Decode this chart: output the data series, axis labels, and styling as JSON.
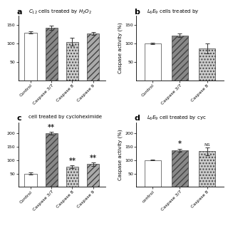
{
  "panels": [
    {
      "label": "a",
      "title": "$C_{12}$ cells treated by $H_2O_2$",
      "categories": [
        "Control",
        "Caspase 3/7",
        "Caspase 8",
        "Caspase 9"
      ],
      "values": [
        130,
        143,
        105,
        128
      ],
      "errors": [
        3,
        6,
        11,
        4
      ],
      "bar_colors": [
        "#ffffff",
        "#888888",
        "#cccccc",
        "#aaaaaa"
      ],
      "bar_hatches": [
        "",
        "////",
        "....",
        "////"
      ],
      "ylabel": "Caspase activity (%)",
      "ylim": [
        0,
        175
      ],
      "yticks": [
        50,
        100,
        150
      ],
      "show_ylabel": false,
      "annotations": [
        "",
        "",
        "",
        ""
      ],
      "row": 0,
      "col": 0
    },
    {
      "label": "b",
      "title": "$L_6E_9$ cells treated by",
      "categories": [
        "Control",
        "Caspase 3/7",
        "Caspase 8"
      ],
      "values": [
        100,
        122,
        87
      ],
      "errors": [
        2,
        5,
        13
      ],
      "bar_colors": [
        "#ffffff",
        "#888888",
        "#cccccc"
      ],
      "bar_hatches": [
        "",
        "////",
        "...."
      ],
      "ylabel": "Caspase activity (%)",
      "ylim": [
        0,
        175
      ],
      "yticks": [
        50,
        100,
        150
      ],
      "show_ylabel": true,
      "annotations": [
        "",
        "",
        ""
      ],
      "row": 0,
      "col": 1
    },
    {
      "label": "c",
      "title": "cell treated by cycloheximide",
      "categories": [
        "Control",
        "Caspase 3/7",
        "Caspase 8",
        "Caspase 9"
      ],
      "values": [
        50,
        200,
        75,
        85
      ],
      "errors": [
        3,
        5,
        5,
        6
      ],
      "bar_colors": [
        "#ffffff",
        "#888888",
        "#cccccc",
        "#aaaaaa"
      ],
      "bar_hatches": [
        "",
        "////",
        "....",
        "////"
      ],
      "ylabel": "Caspase activity (%)",
      "ylim": [
        0,
        240
      ],
      "yticks": [
        50,
        100,
        150,
        200
      ],
      "show_ylabel": false,
      "annotations": [
        "",
        "**",
        "**",
        "**"
      ],
      "row": 1,
      "col": 0
    },
    {
      "label": "d",
      "title": "$L_6E_9$ cell treated by cyc",
      "categories": [
        "control",
        "Caspase 3/7",
        "Caspase 8"
      ],
      "values": [
        100,
        137,
        133
      ],
      "errors": [
        2,
        5,
        15
      ],
      "bar_colors": [
        "#ffffff",
        "#888888",
        "#cccccc"
      ],
      "bar_hatches": [
        "",
        "////",
        "...."
      ],
      "ylabel": "Caspase activity (%)",
      "ylim": [
        0,
        240
      ],
      "yticks": [
        50,
        100,
        150,
        200
      ],
      "show_ylabel": true,
      "annotations": [
        "",
        "*",
        "NS"
      ],
      "row": 1,
      "col": 1
    }
  ],
  "bg_color": "#ffffff",
  "bar_width": 0.6,
  "fontsize_title": 5.0,
  "fontsize_tick": 4.5,
  "fontsize_label": 5.0,
  "fontsize_star": 7.0,
  "fontsize_ns": 4.5,
  "fontsize_panel_label": 8.0
}
